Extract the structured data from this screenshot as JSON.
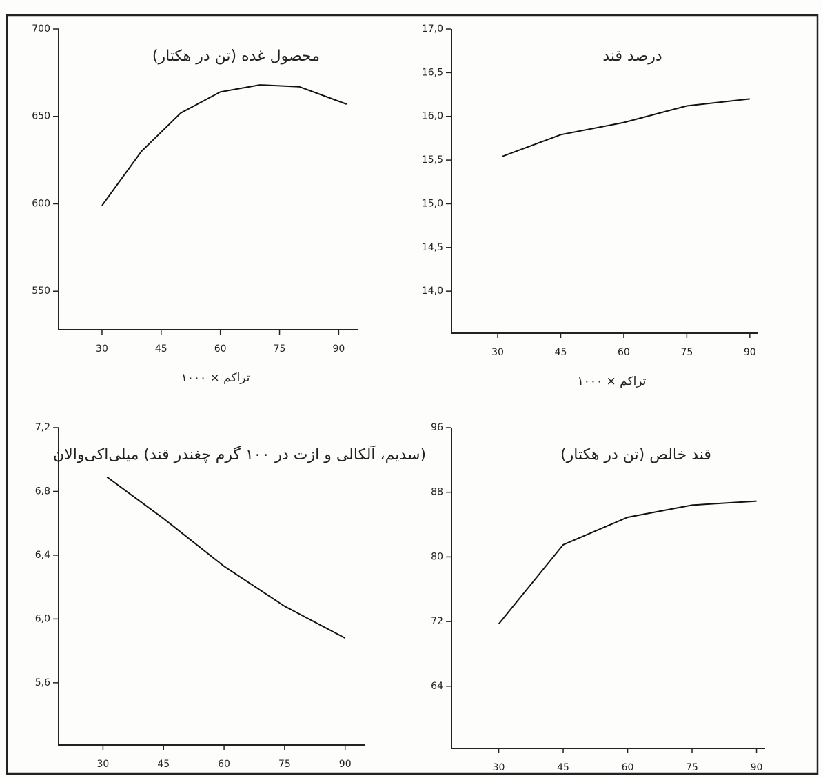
{
  "chart_data": [
    {
      "type": "line",
      "title": "محصول غده (تن در هکتار)",
      "x_label": "تراکم × ۱۰۰۰",
      "x": [
        30,
        40,
        50,
        60,
        70,
        80,
        92
      ],
      "series": [
        {
          "color": "#111111",
          "values": [
            599,
            630,
            652,
            664,
            668,
            667,
            657
          ]
        }
      ],
      "xlim": [
        19,
        95
      ],
      "xticks": [
        30,
        45,
        60,
        75,
        90
      ],
      "ylim": [
        528,
        700
      ],
      "yticks": [
        550,
        600,
        650,
        700
      ]
    },
    {
      "type": "line",
      "title": "درصد قند",
      "x_label": "تراکم × ۱۰۰۰",
      "x": [
        31,
        45,
        60,
        75,
        90
      ],
      "series": [
        {
          "color": "#111111",
          "values": [
            15.54,
            15.79,
            15.93,
            16.12,
            16.2
          ]
        }
      ],
      "xlim": [
        19,
        92
      ],
      "xticks": [
        30,
        45,
        60,
        75,
        90
      ],
      "ylim": [
        13.52,
        17.0
      ],
      "yticks": [
        {
          "value": 14.0,
          "label": "14,0"
        },
        {
          "value": 14.5,
          "label": "14,5"
        },
        {
          "value": 15.0,
          "label": "15,0"
        },
        {
          "value": 15.5,
          "label": "15,5"
        },
        {
          "value": 16.0,
          "label": "16,0"
        },
        {
          "value": 16.5,
          "label": "16,5"
        },
        {
          "value": 17.0,
          "label": "17,0"
        }
      ]
    },
    {
      "type": "line",
      "title": "(سدیم، آلکالی و ازت در ۱۰۰ گرم چغندر قند) میلی‌اکی‌والان",
      "x_label": "تراکم × ۱۰۰۰",
      "x": [
        31,
        45,
        60,
        75,
        90
      ],
      "series": [
        {
          "color": "#111111",
          "values": [
            6.89,
            6.63,
            6.33,
            6.08,
            5.88
          ]
        }
      ],
      "xlim": [
        19,
        95
      ],
      "xticks": [
        30,
        45,
        60,
        75,
        90
      ],
      "ylim": [
        5.21,
        7.2
      ],
      "yticks": [
        {
          "value": 5.6,
          "label": "5,6"
        },
        {
          "value": 6.0,
          "label": "6,0"
        },
        {
          "value": 6.4,
          "label": "6,4"
        },
        {
          "value": 6.8,
          "label": "6,8"
        },
        {
          "value": 7.2,
          "label": "7,2"
        }
      ]
    },
    {
      "type": "line",
      "title": "قند خالص (تن در هکتار)",
      "x_label": "تراکم × ۱۰۰۰",
      "x": [
        30,
        45,
        60,
        75,
        90
      ],
      "series": [
        {
          "color": "#111111",
          "values": [
            71.7,
            81.5,
            84.9,
            86.4,
            86.9
          ]
        }
      ],
      "xlim": [
        19,
        92
      ],
      "xticks": [
        30,
        45,
        60,
        75,
        90
      ],
      "ylim": [
        56.3,
        96
      ],
      "yticks": [
        64,
        72,
        80,
        88,
        96
      ]
    }
  ]
}
